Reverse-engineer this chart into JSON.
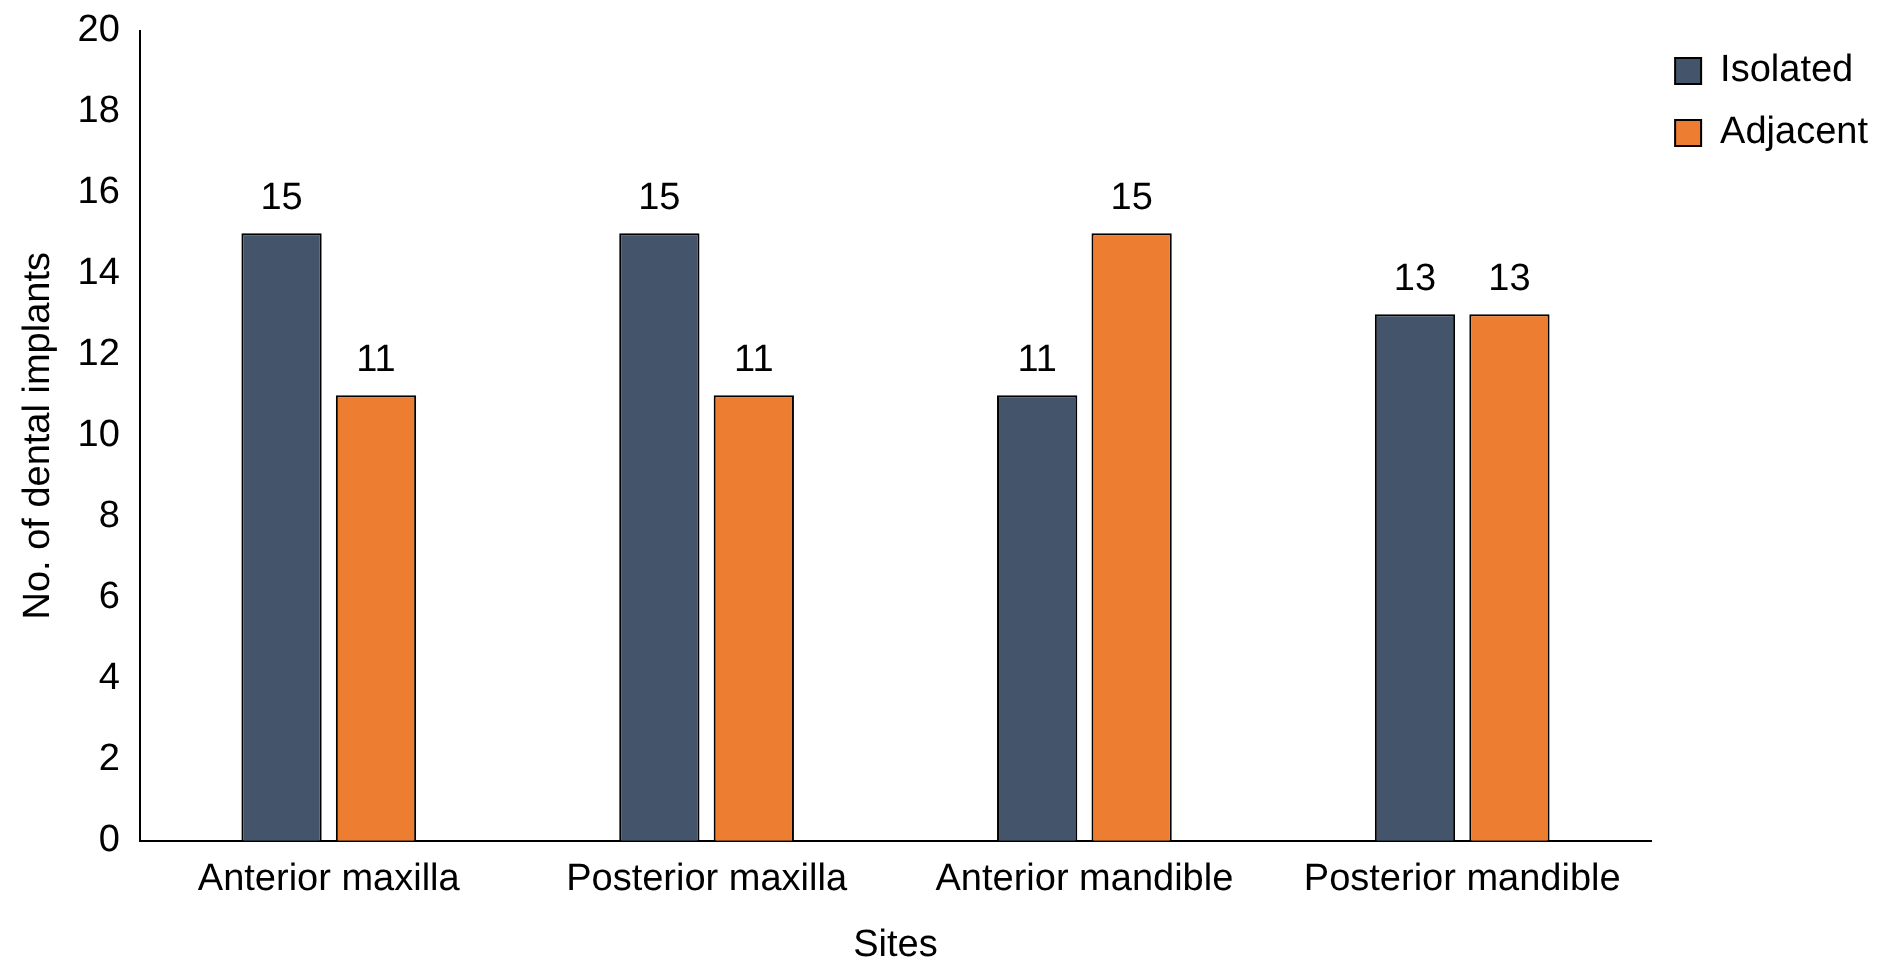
{
  "chart_data": {
    "type": "bar",
    "xlabel": "Sites",
    "ylabel": "No. of dental implants",
    "categories": [
      "Anterior maxilla",
      "Posterior maxilla",
      "Anterior mandible",
      "Posterior mandible"
    ],
    "series": [
      {
        "name": "Isolated",
        "color": "#44546a",
        "values": [
          15,
          15,
          11,
          13
        ]
      },
      {
        "name": "Adjacent",
        "color": "#ed7d31",
        "values": [
          11,
          11,
          15,
          13
        ]
      }
    ],
    "ylim": [
      0,
      20
    ],
    "yticks": [
      0,
      2,
      4,
      6,
      8,
      10,
      12,
      14,
      16,
      18,
      20
    ],
    "grid": false,
    "legend": "top right",
    "data_labels": true
  }
}
